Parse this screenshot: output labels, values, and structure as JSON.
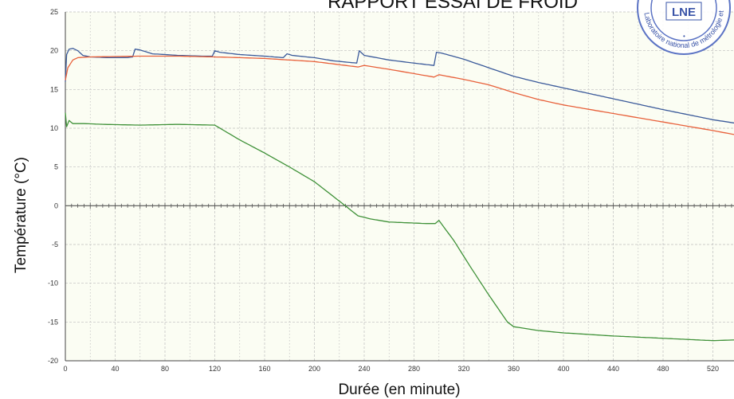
{
  "chart_data": {
    "type": "line",
    "title": "RAPPORT ESSAI DE FROID",
    "xlabel": "Durée (en minute)",
    "ylabel": "Température (°C)",
    "xlim": [
      0,
      540
    ],
    "ylim": [
      -20,
      25
    ],
    "xticks": [
      0,
      40,
      80,
      120,
      160,
      200,
      240,
      280,
      320,
      360,
      400,
      440,
      480,
      520
    ],
    "yticks": [
      25,
      20,
      15,
      10,
      5,
      0,
      -5,
      -10,
      -15,
      -20
    ],
    "grid": true,
    "series": [
      {
        "color": "#3b5a9a",
        "points": [
          [
            0,
            16
          ],
          [
            1,
            19.5
          ],
          [
            3,
            20.2
          ],
          [
            6,
            20.3
          ],
          [
            10,
            20
          ],
          [
            14,
            19.4
          ],
          [
            20,
            19.2
          ],
          [
            35,
            19.1
          ],
          [
            50,
            19.1
          ],
          [
            54,
            19.2
          ],
          [
            56,
            20.2
          ],
          [
            60,
            20.1
          ],
          [
            70,
            19.6
          ],
          [
            90,
            19.4
          ],
          [
            110,
            19.3
          ],
          [
            118,
            19.3
          ],
          [
            120,
            20
          ],
          [
            124,
            19.8
          ],
          [
            140,
            19.5
          ],
          [
            160,
            19.3
          ],
          [
            175,
            19.1
          ],
          [
            178,
            19.6
          ],
          [
            182,
            19.4
          ],
          [
            200,
            19.1
          ],
          [
            215,
            18.7
          ],
          [
            234,
            18.4
          ],
          [
            236,
            20
          ],
          [
            240,
            19.4
          ],
          [
            260,
            18.8
          ],
          [
            280,
            18.4
          ],
          [
            296,
            18.1
          ],
          [
            298,
            19.8
          ],
          [
            302,
            19.7
          ],
          [
            320,
            18.9
          ],
          [
            340,
            17.8
          ],
          [
            360,
            16.7
          ],
          [
            380,
            15.9
          ],
          [
            400,
            15.2
          ],
          [
            440,
            13.8
          ],
          [
            480,
            12.4
          ],
          [
            520,
            11.1
          ],
          [
            540,
            10.6
          ]
        ]
      },
      {
        "color": "#e8603a",
        "points": [
          [
            0,
            16.2
          ],
          [
            2,
            17.8
          ],
          [
            6,
            18.8
          ],
          [
            10,
            19.1
          ],
          [
            20,
            19.2
          ],
          [
            60,
            19.3
          ],
          [
            90,
            19.3
          ],
          [
            120,
            19.2
          ],
          [
            160,
            19
          ],
          [
            200,
            18.6
          ],
          [
            235,
            17.9
          ],
          [
            240,
            18.1
          ],
          [
            260,
            17.6
          ],
          [
            296,
            16.6
          ],
          [
            300,
            16.9
          ],
          [
            320,
            16.3
          ],
          [
            340,
            15.6
          ],
          [
            360,
            14.6
          ],
          [
            380,
            13.7
          ],
          [
            400,
            13
          ],
          [
            440,
            11.9
          ],
          [
            480,
            10.8
          ],
          [
            520,
            9.7
          ],
          [
            540,
            9.1
          ]
        ]
      },
      {
        "color": "#3f9138",
        "points": [
          [
            0,
            12
          ],
          [
            1,
            10.2
          ],
          [
            3,
            11
          ],
          [
            6,
            10.6
          ],
          [
            15,
            10.6
          ],
          [
            30,
            10.5
          ],
          [
            60,
            10.4
          ],
          [
            90,
            10.5
          ],
          [
            120,
            10.4
          ],
          [
            140,
            8.5
          ],
          [
            160,
            6.8
          ],
          [
            180,
            5
          ],
          [
            200,
            3.1
          ],
          [
            220,
            0.6
          ],
          [
            235,
            -1.3
          ],
          [
            245,
            -1.7
          ],
          [
            260,
            -2.1
          ],
          [
            290,
            -2.3
          ],
          [
            297,
            -2.3
          ],
          [
            300,
            -1.9
          ],
          [
            312,
            -4.5
          ],
          [
            325,
            -7.8
          ],
          [
            340,
            -11.5
          ],
          [
            355,
            -15
          ],
          [
            360,
            -15.6
          ],
          [
            380,
            -16.1
          ],
          [
            400,
            -16.4
          ],
          [
            440,
            -16.8
          ],
          [
            480,
            -17.1
          ],
          [
            520,
            -17.4
          ],
          [
            540,
            -17.3
          ]
        ]
      }
    ]
  },
  "stamp": {
    "logo": "LNE",
    "ring_text": "Laboratoire national de métrologie et d'essais"
  }
}
